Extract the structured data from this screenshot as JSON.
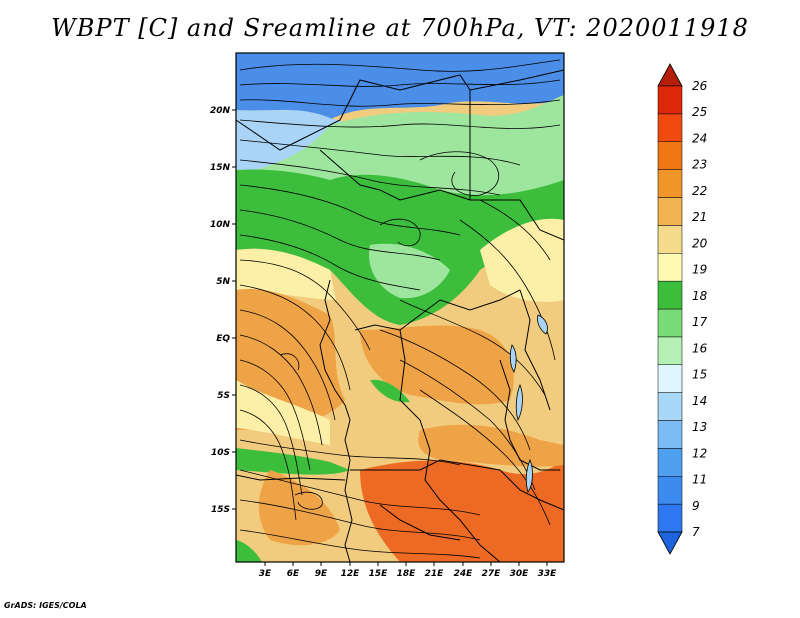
{
  "title": "WBPT [C] and Sreamline at 700hPa, VT: 2020011918",
  "footer": "GrADS: IGES/COLA",
  "lat_labels": [
    "20N",
    "15N",
    "10N",
    "5N",
    "EQ",
    "5S",
    "10S",
    "15S"
  ],
  "lon_labels": [
    "3E",
    "6E",
    "9E",
    "12E",
    "15E",
    "18E",
    "21E",
    "24E",
    "27E",
    "30E",
    "33E"
  ],
  "colorbar": {
    "labels": [
      "7",
      "9",
      "11",
      "12",
      "13",
      "14",
      "15",
      "16",
      "17",
      "18",
      "19",
      "20",
      "21",
      "22",
      "23",
      "24",
      "25",
      "26"
    ],
    "colors": [
      "#1e64dc",
      "#2d78f0",
      "#3c8cf0",
      "#50a0f0",
      "#7cbcf4",
      "#a8d8f8",
      "#dff6ff",
      "#b4f0b4",
      "#78dc78",
      "#3cbe3c",
      "#fffab4",
      "#f5dc8c",
      "#f0b450",
      "#f09628",
      "#f07814",
      "#f04b0f",
      "#dc280a",
      "#b41e0a"
    ]
  },
  "map_colors": {
    "cold": "#4a8ee8",
    "cool": "#a9d4f6",
    "green_dark": "#3cbe3c",
    "green_light": "#9ee69e",
    "pale": "#fcf0a8",
    "tan": "#f2cc7e",
    "orange": "#efa347",
    "red_orange": "#ec6a24"
  }
}
